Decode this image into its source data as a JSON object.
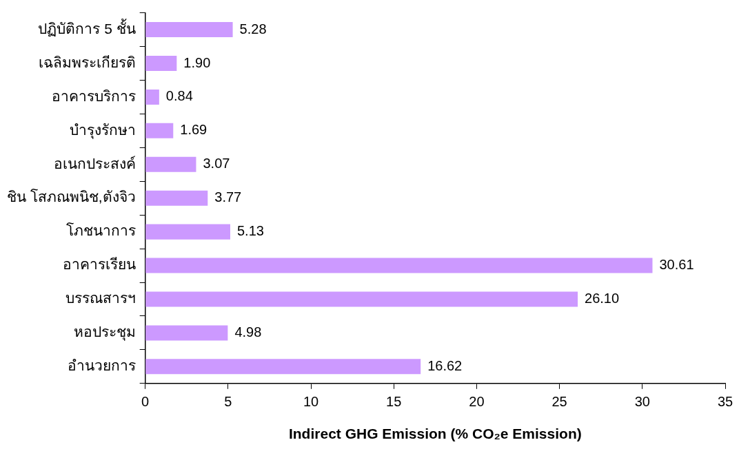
{
  "chart_data": {
    "type": "bar",
    "orientation": "horizontal",
    "xlabel": "Indirect GHG Emission (% CO₂e Emission)",
    "categories": [
      "ปฏิบัติการ 5 ชั้น",
      "เฉลิมพระเกียรติ",
      "อาคารบริการ",
      "บำรุงรักษา",
      "อเนกประสงค์",
      "ชิน โสภณพนิช,ตังจิว",
      "โภชนาการ",
      "อาคารเรียน",
      "บรรณสารฯ",
      "หอประชุม",
      "อำนวยการ"
    ],
    "values": [
      5.28,
      1.9,
      0.84,
      1.69,
      3.07,
      3.77,
      5.13,
      30.61,
      26.1,
      4.98,
      16.62
    ],
    "value_labels": [
      "5.28",
      "1.90",
      "0.84",
      "1.69",
      "3.07",
      "3.77",
      "5.13",
      "30.61",
      "26.10",
      "4.98",
      "16.62"
    ],
    "color": "#cc99ff",
    "xlim": [
      0,
      35
    ],
    "xticks": [
      0,
      5,
      10,
      15,
      20,
      25,
      30,
      35
    ],
    "grid": false,
    "legend": false
  }
}
